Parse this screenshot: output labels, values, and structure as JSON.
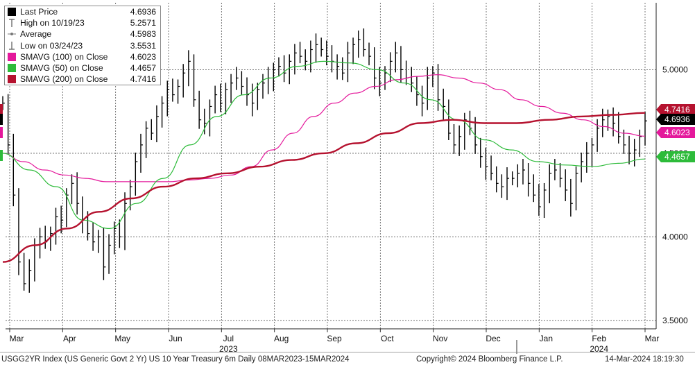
{
  "chart_data": {
    "type": "line",
    "title": "",
    "xlabel": "",
    "ylabel": "",
    "ylim": [
      3.45,
      5.4
    ],
    "y_ticks": [
      "5.0000",
      "4.5000",
      "4.0000",
      "3.5000"
    ],
    "y_tick_values": [
      5.0,
      4.5,
      4.0,
      3.5
    ],
    "x_month_labels": [
      "Mar",
      "Apr",
      "May",
      "Jun",
      "Jul",
      "Aug",
      "Sep",
      "Oct",
      "Nov",
      "Dec",
      "Jan",
      "Feb",
      "Mar"
    ],
    "x_year_labels": [
      {
        "label": "2023",
        "month_index": 4
      },
      {
        "label": "2024",
        "month_index": 11
      }
    ],
    "grid": true,
    "legend_position": "top-left",
    "series": [
      {
        "name": "Last Price",
        "value": "4.6936",
        "color": "#000000",
        "values": [
          4.8,
          4.55,
          4.25,
          3.85,
          3.72,
          3.8,
          3.95,
          4.0,
          3.97,
          4.02,
          4.12,
          4.1,
          4.25,
          4.32,
          4.2,
          4.1,
          4.02,
          3.97,
          4.0,
          3.82,
          3.95,
          4.05,
          4.0,
          4.2,
          4.3,
          4.45,
          4.55,
          4.65,
          4.62,
          4.72,
          4.8,
          4.88,
          4.85,
          4.9,
          4.98,
          5.05,
          4.82,
          4.7,
          4.68,
          4.78,
          4.85,
          4.8,
          4.88,
          4.92,
          4.95,
          4.9,
          4.85,
          4.8,
          4.88,
          4.92,
          4.95,
          5.0,
          5.02,
          4.98,
          5.05,
          5.1,
          5.08,
          5.05,
          5.12,
          5.15,
          5.12,
          5.08,
          5.05,
          5.02,
          4.98,
          5.1,
          5.15,
          5.18,
          5.12,
          5.08,
          4.95,
          4.92,
          4.98,
          5.05,
          5.1,
          5.0,
          4.95,
          4.92,
          4.85,
          4.8,
          4.95,
          4.98,
          4.82,
          4.78,
          4.62,
          4.55,
          4.6,
          4.7,
          4.65,
          4.55,
          4.48,
          4.42,
          4.38,
          4.32,
          4.3,
          4.35,
          4.35,
          4.38,
          4.4,
          4.32,
          4.25,
          4.18,
          4.28,
          4.38,
          4.4,
          4.35,
          4.28,
          4.2,
          4.38,
          4.45,
          4.5,
          4.55,
          4.65,
          4.7,
          4.72,
          4.68,
          4.6,
          4.55,
          4.5,
          4.52,
          4.6,
          4.6936
        ]
      },
      {
        "name": "High on 10/19/23",
        "value": "5.2571",
        "color": "#555555"
      },
      {
        "name": "Average",
        "value": "4.5983",
        "color": "#555555"
      },
      {
        "name": "Low on 03/24/23",
        "value": "3.5531",
        "color": "#555555"
      },
      {
        "name": "SMAVG (100)  on Close",
        "value": "4.6023",
        "color": "#e4189b",
        "values": [
          4.5,
          4.45,
          4.4,
          4.37,
          4.35,
          4.33,
          4.33,
          4.33,
          4.33,
          4.34,
          4.35,
          4.37,
          4.42,
          4.52,
          4.62,
          4.72,
          4.8,
          4.86,
          4.9,
          4.94,
          4.96,
          4.97,
          4.95,
          4.92,
          4.88,
          4.82,
          4.78,
          4.74,
          4.7,
          4.66,
          4.62,
          4.6023
        ]
      },
      {
        "name": "SMAVG (50)  on Close",
        "value": "4.4657",
        "color": "#2dbb3a",
        "values": [
          4.5,
          4.4,
          4.3,
          4.1,
          4.05,
          4.2,
          4.35,
          4.55,
          4.72,
          4.85,
          4.95,
          5.02,
          5.05,
          5.04,
          5.0,
          4.92,
          4.82,
          4.7,
          4.58,
          4.52,
          4.45,
          4.43,
          4.42,
          4.44,
          4.4657
        ]
      },
      {
        "name": "SMAVG (200)  on Close",
        "value": "4.7416",
        "color": "#b5122f",
        "values": [
          3.85,
          3.95,
          4.05,
          4.15,
          4.23,
          4.3,
          4.35,
          4.38,
          4.42,
          4.46,
          4.5,
          4.56,
          4.62,
          4.68,
          4.7,
          4.68,
          4.68,
          4.7,
          4.72,
          4.73,
          4.7416
        ]
      }
    ],
    "price_tags": [
      {
        "label": "4.7416",
        "color": "#b5122f",
        "text_color": "#ffffff",
        "value": 4.7416
      },
      {
        "label": "4.6936",
        "color": "#000000",
        "text_color": "#ffffff",
        "value": 4.6936
      },
      {
        "label": "4.6023",
        "color": "#e4189b",
        "text_color": "#ffffff",
        "value": 4.6023
      },
      {
        "label": "4.4657",
        "color": "#2dbb3a",
        "text_color": "#ffffff",
        "value": 4.4657
      }
    ]
  },
  "footer": {
    "security": "USGG2YR Index (US Generic Govt 2 Yr) US 10 Year Treasury 6m  Daily 08MAR2023-15MAR2024",
    "copyright": "Copyright© 2024 Bloomberg Finance L.P.",
    "timestamp": "14-Mar-2024 18:19:30"
  }
}
